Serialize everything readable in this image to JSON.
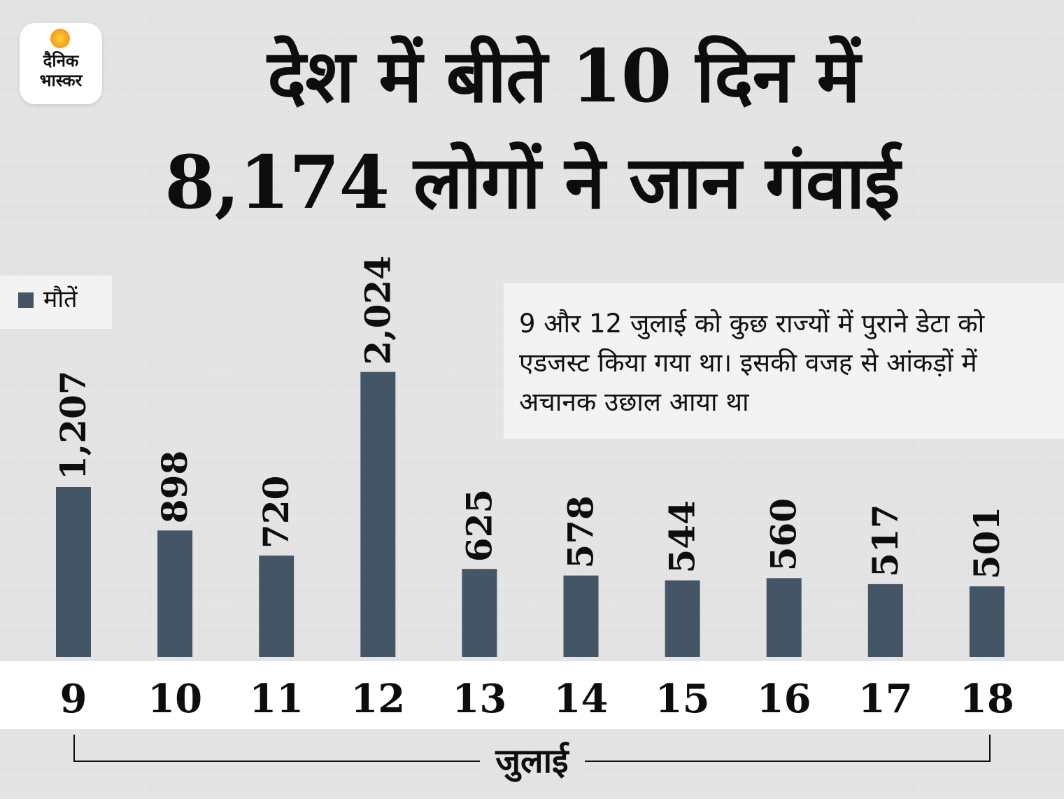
{
  "brand": {
    "line1": "दैनिक",
    "line2": "भास्कर",
    "sun_color": "#f7a520"
  },
  "header": {
    "title_line1": "देश में बीते 10 दिन में",
    "title_line2": "8,174 लोगों ने जान गंवाई"
  },
  "note": {
    "text": "9 और 12 जुलाई को कुछ राज्यों में पुराने डेटा को एडजस्ट किया गया था। इसकी वजह से आंकड़ों में अचानक उछाल आया था"
  },
  "chart_data": {
    "type": "bar",
    "categories": [
      "9",
      "10",
      "11",
      "12",
      "13",
      "14",
      "15",
      "16",
      "17",
      "18"
    ],
    "series": [
      {
        "name": "मौतें",
        "values": [
          1207,
          898,
          720,
          2024,
          625,
          578,
          544,
          560,
          517,
          501
        ],
        "labels": [
          "1,207",
          "898",
          "720",
          "2,024",
          "625",
          "578",
          "544",
          "560",
          "517",
          "501"
        ],
        "color": "#445566"
      }
    ],
    "xlabel": "जुलाई",
    "ylabel": "",
    "grid": false,
    "legend": "top-left"
  }
}
